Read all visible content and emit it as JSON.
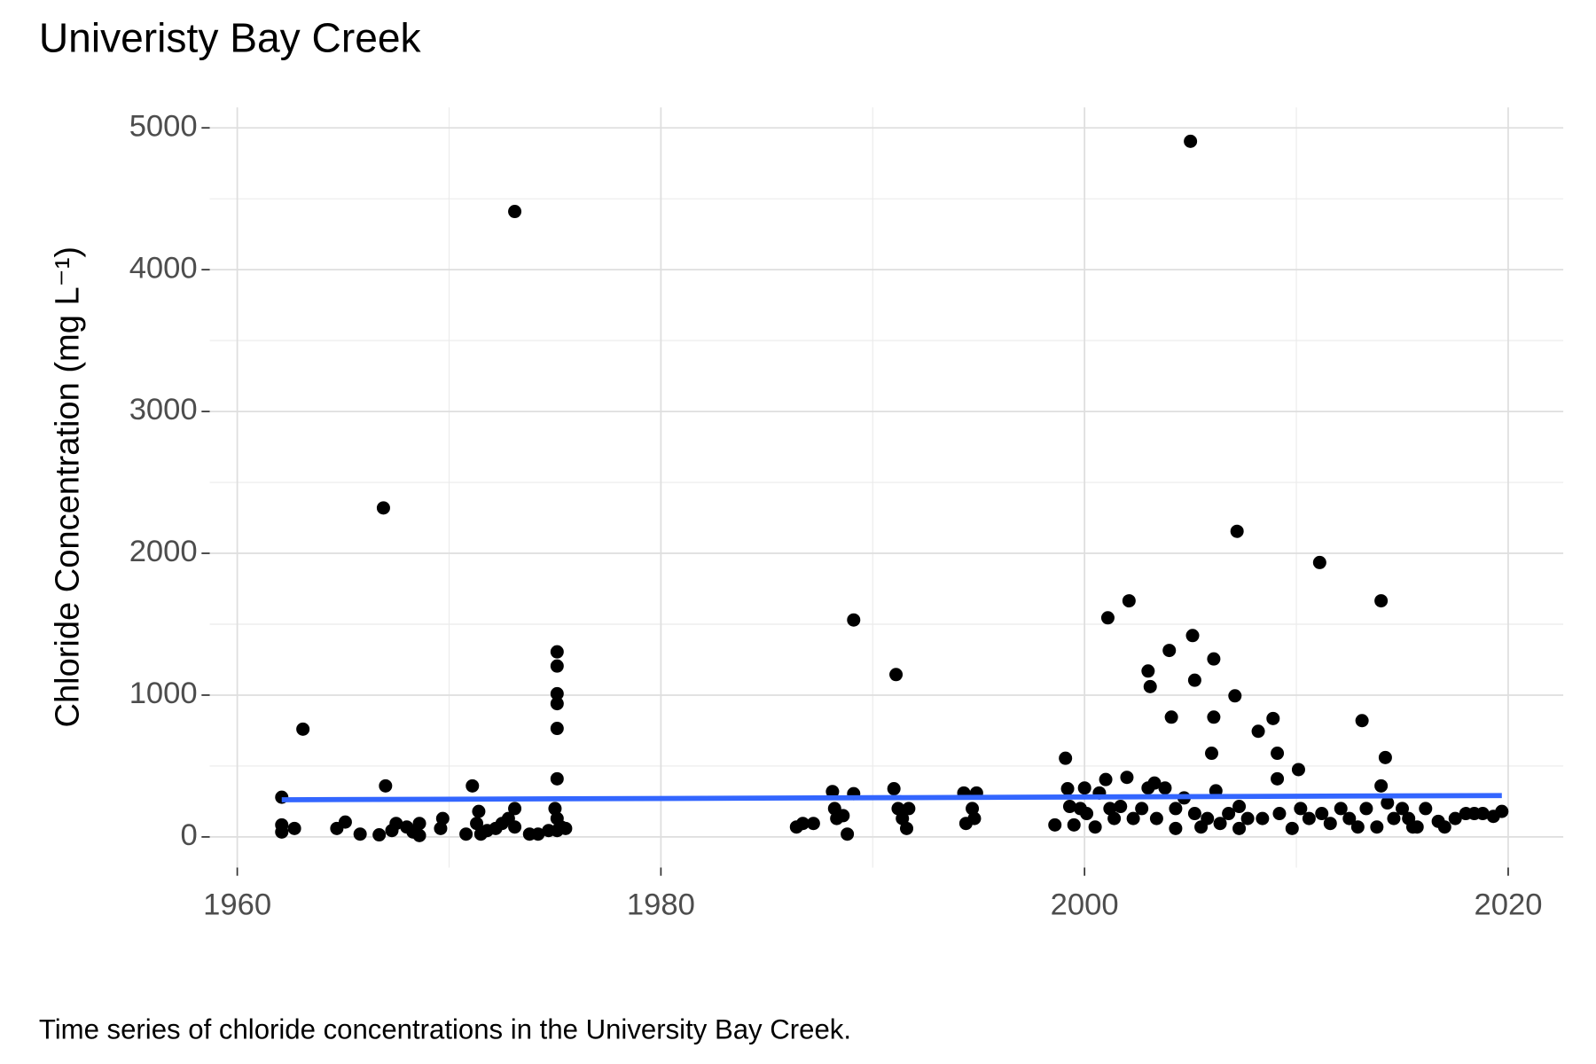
{
  "chart_data": {
    "type": "scatter",
    "title": "Univeristy Bay Creek",
    "y_label": "Chloride Concentration (mg L⁻¹)",
    "caption": "Time series of chloride concentrations in the University Bay Creek.",
    "xlim": [
      1958.7,
      2022.6
    ],
    "xticks": [
      1960,
      1980,
      2000,
      2020
    ],
    "xminor_ticks": [
      1970,
      1990,
      2010
    ],
    "ylim": [
      -216,
      5144
    ],
    "yticks": [
      0,
      1000,
      2000,
      3000,
      4000,
      5000
    ],
    "yminor_ticks": [
      500,
      1500,
      2500,
      3500,
      4500
    ],
    "grid": true,
    "series": [
      {
        "color": "#000000",
        "x": [
          1962.1,
          1962.1,
          1962.1,
          1962.7,
          1963.1,
          1964.7,
          1965.1,
          1965.8,
          1966.9,
          1967,
          1966.7,
          1967.3,
          1967.5,
          1968,
          1968.3,
          1968.6,
          1968.6,
          1969.7,
          1969.6,
          1970.8,
          1971.1,
          1971.3,
          1971.4,
          1971.5,
          1971.8,
          1972.2,
          1972.5,
          1972.8,
          1973.1,
          1973.1,
          1973.1,
          1973.8,
          1974.2,
          1974.7,
          1975.1,
          1975.1,
          1975.1,
          1975.1,
          1975.1,
          1975.1,
          1975,
          1975.1,
          1975.3,
          1975.5,
          1975.1,
          1986.4,
          1986.7,
          1987.2,
          1988.1,
          1988.2,
          1988.3,
          1988.6,
          1988.8,
          1989.1,
          1989.1,
          1991.1,
          1991,
          1991.2,
          1991.4,
          1991.6,
          1991.7,
          1994.3,
          1994.4,
          1994.7,
          1994.8,
          1994.9,
          1998.6,
          1999.1,
          1999.2,
          1999.3,
          1999.5,
          1999.8,
          2000,
          2000.1,
          2000.5,
          2000.7,
          2001,
          2001.1,
          2001.2,
          2001.4,
          2001.7,
          2002,
          2002.1,
          2002.3,
          2002.7,
          2003,
          2003.1,
          2003,
          2003.3,
          2003.4,
          2003.8,
          2004,
          2004.1,
          2004.3,
          2004.3,
          2004.7,
          2005,
          2005.1,
          2005.2,
          2005.2,
          2005.5,
          2005.8,
          2006.1,
          2006.1,
          2006,
          2006.2,
          2006.4,
          2006.8,
          2007.1,
          2007.2,
          2007.3,
          2007.3,
          2007.7,
          2008.2,
          2008.4,
          2008.9,
          2009.1,
          2009.1,
          2009.2,
          2009.8,
          2010.1,
          2010.2,
          2010.6,
          2011.1,
          2011.2,
          2011.6,
          2012.1,
          2012.5,
          2012.9,
          2013.1,
          2013.3,
          2013.8,
          2014,
          2014.2,
          2014,
          2014.3,
          2014.6,
          2015,
          2015.3,
          2015.5,
          2015.7,
          2016.1,
          2016.7,
          2017,
          2017.5,
          2018,
          2018.4,
          2018.8,
          2019.3,
          2019.7
        ],
        "values": [
          280,
          85,
          35,
          60,
          760,
          60,
          105,
          20,
          2320,
          360,
          15,
          45,
          95,
          70,
          35,
          95,
          10,
          130,
          60,
          20,
          360,
          95,
          180,
          20,
          45,
          60,
          95,
          130,
          200,
          70,
          4410,
          20,
          20,
          45,
          1305,
          1205,
          1010,
          940,
          765,
          410,
          200,
          130,
          70,
          60,
          45,
          70,
          95,
          95,
          320,
          200,
          130,
          150,
          20,
          1530,
          305,
          1145,
          340,
          200,
          130,
          60,
          200,
          310,
          95,
          200,
          130,
          310,
          85,
          555,
          340,
          215,
          85,
          200,
          345,
          165,
          70,
          310,
          405,
          1545,
          200,
          130,
          215,
          420,
          1665,
          130,
          200,
          1170,
          1060,
          345,
          380,
          130,
          345,
          1315,
          845,
          60,
          200,
          275,
          4905,
          1420,
          1105,
          165,
          70,
          130,
          1255,
          845,
          590,
          325,
          95,
          165,
          995,
          2155,
          215,
          60,
          130,
          745,
          130,
          835,
          590,
          410,
          165,
          60,
          475,
          200,
          130,
          1935,
          165,
          95,
          200,
          130,
          70,
          820,
          200,
          70,
          1665,
          560,
          360,
          240,
          130,
          200,
          130,
          70,
          70,
          200,
          110,
          70,
          130,
          165,
          165,
          165,
          145,
          180
        ]
      }
    ],
    "trend": {
      "color": "#3366ff",
      "x": [
        1962.1,
        2019.7
      ],
      "values": [
        262,
        292
      ]
    }
  }
}
